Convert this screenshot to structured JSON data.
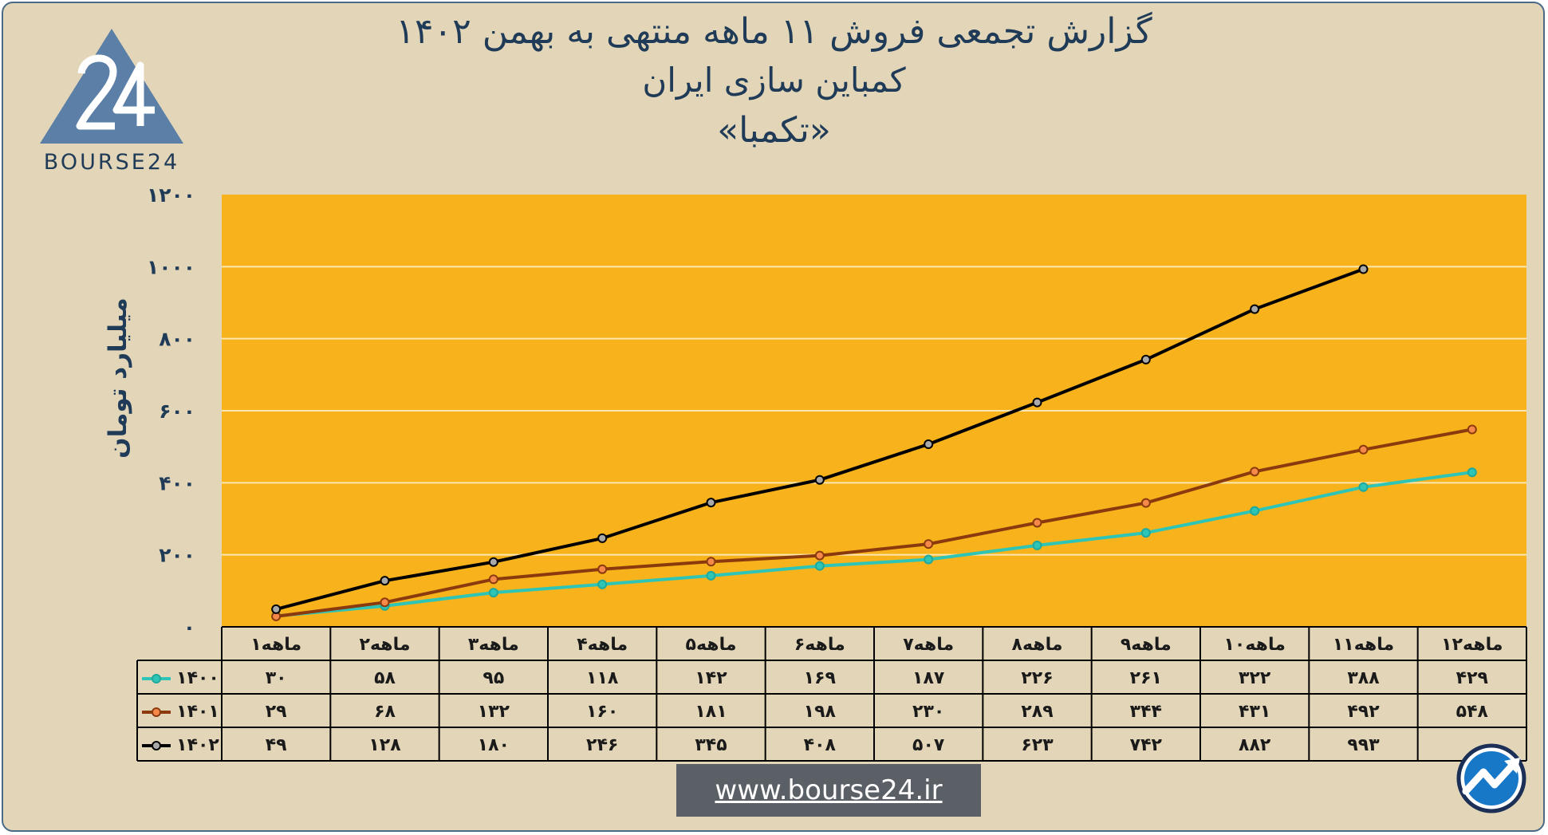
{
  "title": {
    "line1": "گزارش تجمعی فروش ۱۱ ماهه منتهی به بهمن ۱۴۰۲",
    "line2": "کمباین سازی ایران",
    "line3": "«تکمبا»"
  },
  "logo": {
    "icon": "bourse24-triangle-logo",
    "text": "BOURSE24"
  },
  "website": "www.bourse24.ir",
  "badge_icon": "trend-arrow-badge-icon",
  "chart_data": {
    "type": "line",
    "ylabel": "میلیارد تومان",
    "ylim": [
      0,
      1200
    ],
    "yticks": [
      0,
      200,
      400,
      600,
      800,
      1000,
      1200
    ],
    "ytick_labels": [
      "۰",
      "۲۰۰",
      "۴۰۰",
      "۶۰۰",
      "۸۰۰",
      "۱۰۰۰",
      "۱۲۰۰"
    ],
    "grid": true,
    "plot_background": "#f7b21c",
    "categories": [
      "۱ماهه",
      "۲ماهه",
      "۳ماهه",
      "۴ماهه",
      "۵ماهه",
      "۶ماهه",
      "۷ماهه",
      "۸ماهه",
      "۹ماهه",
      "۱۰ماهه",
      "۱۱ماهه",
      "۱۲ماهه"
    ],
    "series": [
      {
        "name": "۱۴۰۰",
        "color": "#2ec4b6",
        "values": [
          30,
          58,
          95,
          118,
          142,
          169,
          187,
          226,
          261,
          322,
          388,
          429
        ],
        "labels": [
          "۳۰",
          "۵۸",
          "۹۵",
          "۱۱۸",
          "۱۴۲",
          "۱۶۹",
          "۱۸۷",
          "۲۲۶",
          "۲۶۱",
          "۳۲۲",
          "۳۸۸",
          "۴۲۹"
        ]
      },
      {
        "name": "۱۴۰۱",
        "color": "#8b3a0e",
        "values": [
          29,
          68,
          132,
          160,
          181,
          198,
          230,
          289,
          344,
          431,
          492,
          548
        ],
        "labels": [
          "۲۹",
          "۶۸",
          "۱۳۲",
          "۱۶۰",
          "۱۸۱",
          "۱۹۸",
          "۲۳۰",
          "۲۸۹",
          "۳۴۴",
          "۴۳۱",
          "۴۹۲",
          "۵۴۸"
        ]
      },
      {
        "name": "۱۴۰۲",
        "color": "#000000",
        "values": [
          49,
          128,
          180,
          246,
          345,
          408,
          507,
          623,
          742,
          882,
          993,
          null
        ],
        "labels": [
          "۴۹",
          "۱۲۸",
          "۱۸۰",
          "۲۴۶",
          "۳۴۵",
          "۴۰۸",
          "۵۰۷",
          "۶۲۳",
          "۷۴۲",
          "۸۸۲",
          "۹۹۳",
          ""
        ]
      }
    ]
  }
}
